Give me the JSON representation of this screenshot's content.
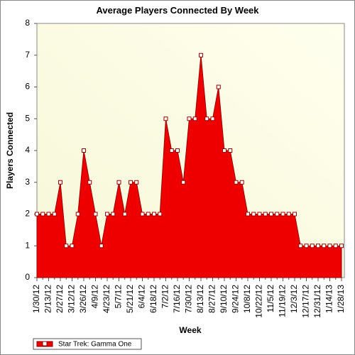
{
  "chart_data": {
    "type": "area",
    "title": "Average Players Connected By Week",
    "x_label": "Week",
    "y_label": "Players Connected",
    "categories": [
      "1/30/12",
      null,
      "2/13/12",
      null,
      "2/27/12",
      null,
      "3/12/12",
      null,
      "3/26/12",
      null,
      "4/9/12",
      null,
      "4/23/12",
      null,
      "5/7/12",
      null,
      "5/21/12",
      null,
      "6/4/12",
      null,
      "6/18/12",
      null,
      "7/2/12",
      null,
      "7/16/12",
      null,
      "7/30/12",
      null,
      "8/13/12",
      null,
      "8/27/12",
      null,
      "9/10/12",
      null,
      "9/24/12",
      null,
      "10/8/12",
      null,
      "10/22/12",
      null,
      "11/5/12",
      null,
      "11/19/12",
      null,
      "12/3/12",
      null,
      "12/17/12",
      null,
      "12/31/12",
      null,
      "1/14/13",
      null,
      "1/28/13"
    ],
    "series": [
      {
        "name": "Star Trek: Gamma One",
        "color": "#ee0000",
        "values": [
          2,
          2,
          2,
          2,
          3,
          1,
          1,
          2,
          4,
          3,
          2,
          1,
          2,
          2,
          3,
          2,
          3,
          3,
          2,
          2,
          2,
          2,
          5,
          4,
          4,
          3,
          5,
          5,
          7,
          5,
          5,
          6,
          4,
          4,
          3,
          3,
          2,
          2,
          2,
          2,
          2,
          2,
          2,
          2,
          2,
          1,
          1,
          1,
          1,
          1,
          1,
          1,
          1
        ]
      }
    ],
    "ylim": [
      0,
      8
    ],
    "yticks": [
      0,
      1,
      2,
      3,
      4,
      5,
      6,
      7,
      8
    ],
    "legend": "bottom-left"
  }
}
